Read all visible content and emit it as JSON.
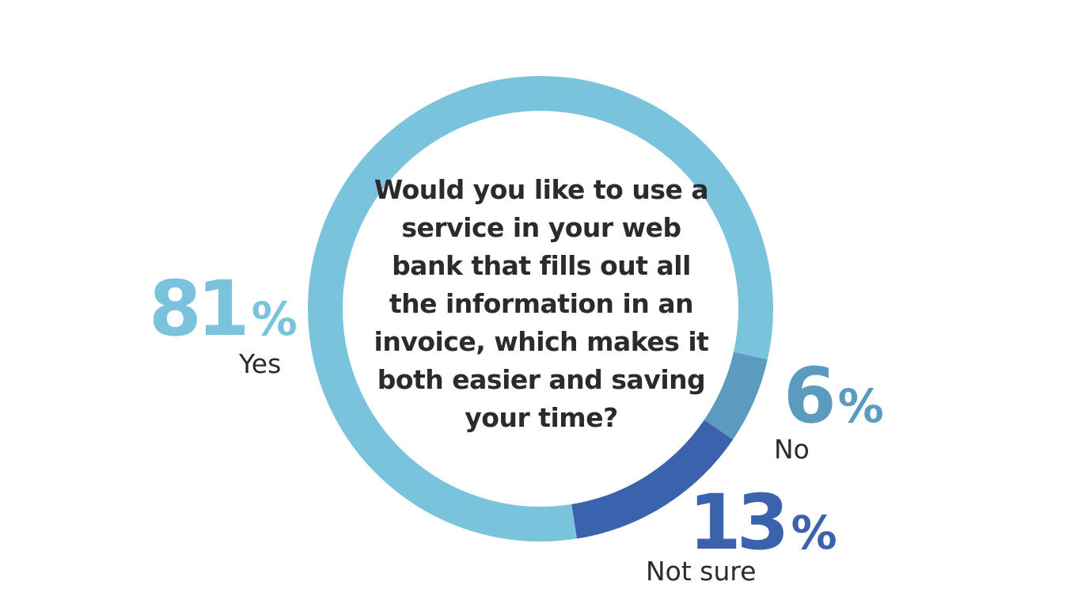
{
  "chart_data": {
    "type": "pie",
    "question": "Would you like to use a service in your web bank that fills out all the information in an invoice, which makes it both easier and saving your time?",
    "slices": [
      {
        "label": "Yes",
        "value": 81,
        "display": "81",
        "color": "#7ac3dd"
      },
      {
        "label": "No",
        "value": 6,
        "display": "6",
        "color": "#5b9bbf"
      },
      {
        "label": "Not sure",
        "value": 13,
        "display": "13",
        "color": "#3b62ac"
      }
    ],
    "percent_symbol": "%"
  }
}
